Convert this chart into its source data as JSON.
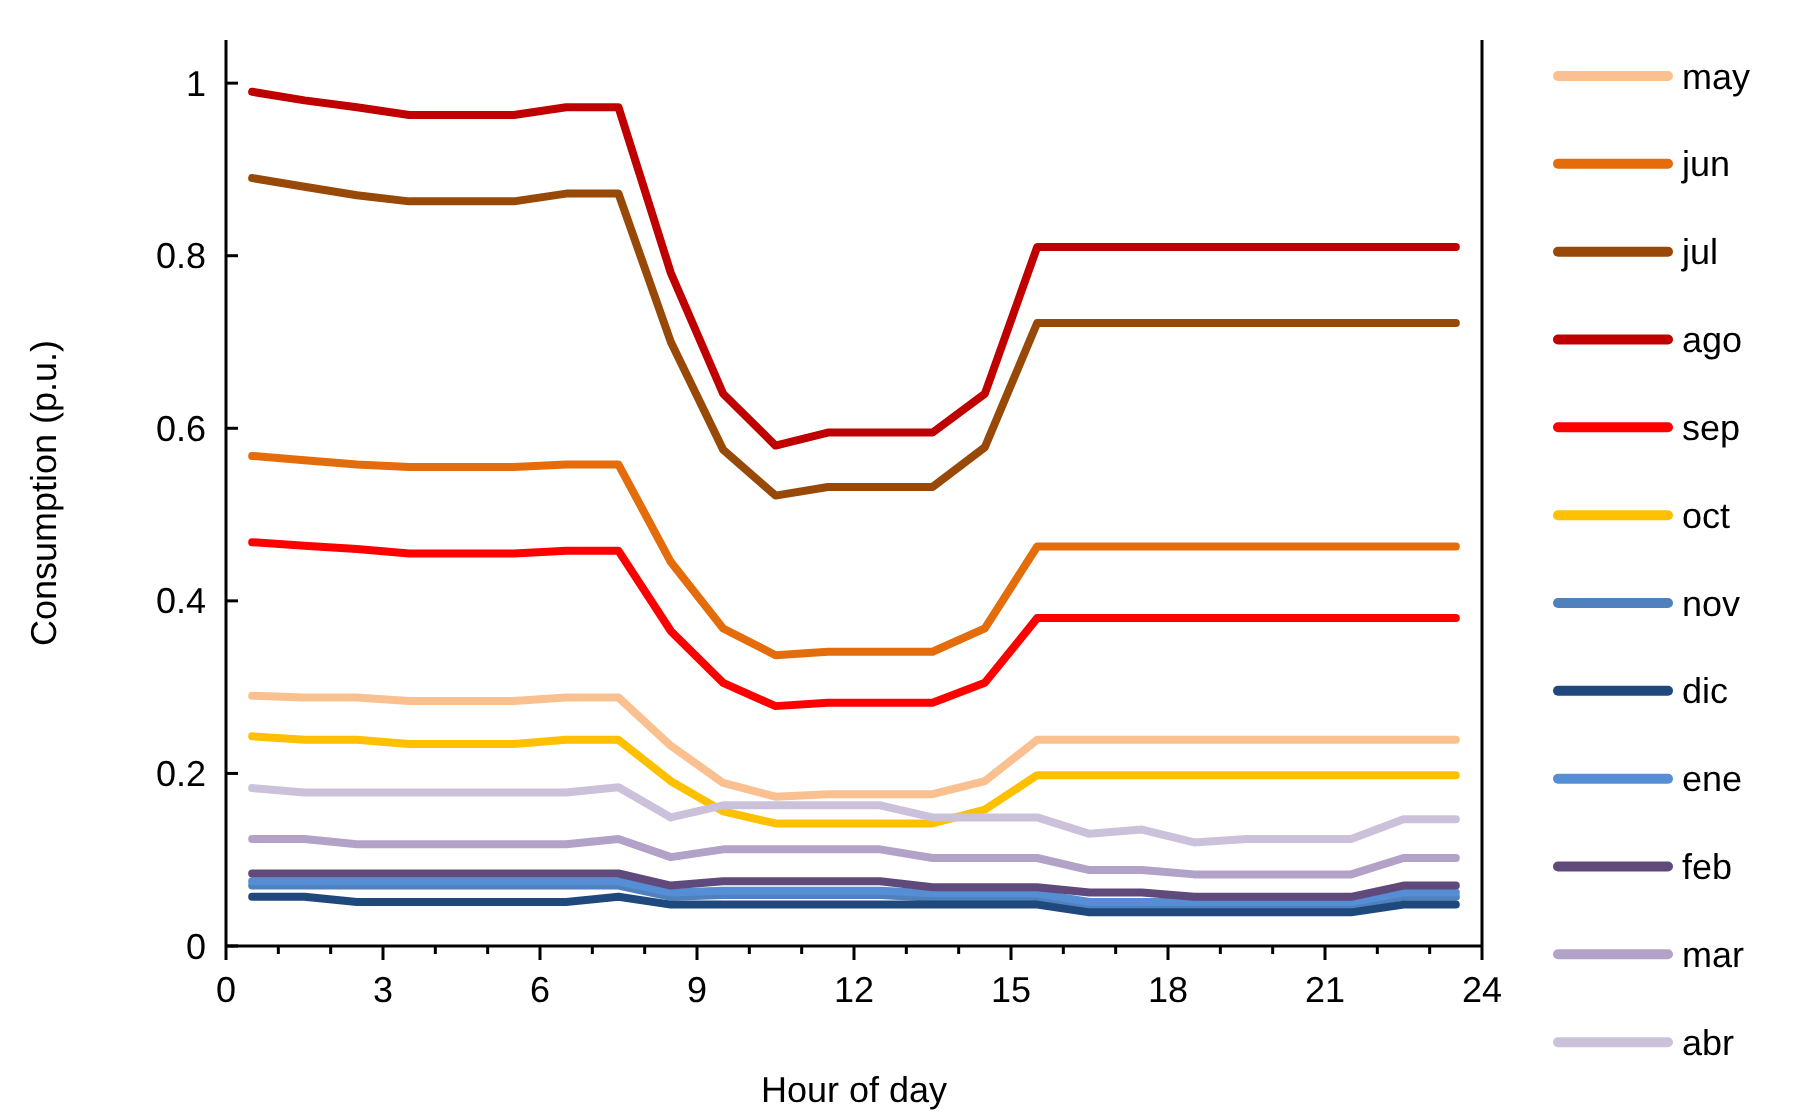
{
  "chart_data": {
    "type": "line",
    "xlabel": "Hour of day",
    "ylabel": "Consumption (p.u.)",
    "x": [
      0.5,
      1.5,
      2.5,
      3.5,
      4.5,
      5.5,
      6.5,
      7.5,
      8.5,
      9.5,
      10.5,
      11.5,
      12.5,
      13.5,
      14.5,
      15.5,
      16.5,
      17.5,
      18.5,
      19.5,
      20.5,
      21.5,
      22.5,
      23.5
    ],
    "xlim": [
      0,
      24
    ],
    "xticks": [
      0,
      {
        "value": 1,
        "label": null
      },
      {
        "value": 2,
        "label": null
      },
      3,
      {
        "value": 4,
        "label": null
      },
      {
        "value": 5,
        "label": null
      },
      6,
      {
        "value": 7,
        "label": null
      },
      {
        "value": 8,
        "label": null
      },
      9,
      {
        "value": 10,
        "label": null
      },
      {
        "value": 11,
        "label": null
      },
      12,
      {
        "value": 13,
        "label": null
      },
      {
        "value": 14,
        "label": null
      },
      15,
      {
        "value": 16,
        "label": null
      },
      {
        "value": 17,
        "label": null
      },
      18,
      {
        "value": 19,
        "label": null
      },
      {
        "value": 20,
        "label": null
      },
      21,
      {
        "value": 22,
        "label": null
      },
      {
        "value": 23,
        "label": null
      },
      24
    ],
    "ylim": [
      0,
      1.05
    ],
    "yticks": [
      0,
      0.2,
      0.4,
      0.6,
      0.8,
      1
    ],
    "grid": false,
    "legend": "right",
    "marker": "none",
    "line_style": "solid",
    "series": [
      {
        "name": "may",
        "color": "#fac090",
        "values": [
          0.29,
          0.288,
          0.288,
          0.284,
          0.284,
          0.284,
          0.288,
          0.288,
          0.232,
          0.189,
          0.173,
          0.176,
          0.176,
          0.176,
          0.191,
          0.239,
          0.239,
          0.239,
          0.239,
          0.239,
          0.239,
          0.239,
          0.239,
          0.239
        ]
      },
      {
        "name": "jun",
        "color": "#e46c0a",
        "values": [
          0.568,
          0.563,
          0.558,
          0.555,
          0.555,
          0.555,
          0.558,
          0.558,
          0.445,
          0.368,
          0.337,
          0.341,
          0.341,
          0.341,
          0.368,
          0.463,
          0.463,
          0.463,
          0.463,
          0.463,
          0.463,
          0.463,
          0.463,
          0.463
        ]
      },
      {
        "name": "jul",
        "color": "#984807",
        "values": [
          0.89,
          0.88,
          0.87,
          0.863,
          0.863,
          0.863,
          0.872,
          0.872,
          0.7,
          0.575,
          0.522,
          0.532,
          0.532,
          0.532,
          0.578,
          0.722,
          0.722,
          0.722,
          0.722,
          0.722,
          0.722,
          0.722,
          0.722,
          0.722
        ]
      },
      {
        "name": "ago",
        "color": "#c00000",
        "values": [
          0.99,
          0.98,
          0.972,
          0.963,
          0.963,
          0.963,
          0.972,
          0.972,
          0.78,
          0.64,
          0.58,
          0.595,
          0.595,
          0.595,
          0.64,
          0.81,
          0.81,
          0.81,
          0.81,
          0.81,
          0.81,
          0.81,
          0.81,
          0.81
        ]
      },
      {
        "name": "sep",
        "color": "#ff0000",
        "values": [
          0.468,
          0.464,
          0.46,
          0.455,
          0.455,
          0.455,
          0.458,
          0.458,
          0.365,
          0.305,
          0.278,
          0.282,
          0.282,
          0.282,
          0.305,
          0.38,
          0.38,
          0.38,
          0.38,
          0.38,
          0.38,
          0.38,
          0.38,
          0.38
        ]
      },
      {
        "name": "oct",
        "color": "#ffc000",
        "values": [
          0.243,
          0.239,
          0.239,
          0.234,
          0.234,
          0.234,
          0.239,
          0.239,
          0.191,
          0.156,
          0.142,
          0.142,
          0.142,
          0.142,
          0.158,
          0.198,
          0.198,
          0.198,
          0.198,
          0.198,
          0.198,
          0.198,
          0.198,
          0.198
        ]
      },
      {
        "name": "nov",
        "color": "#4f81bd",
        "values": [
          0.07,
          0.07,
          0.07,
          0.07,
          0.07,
          0.07,
          0.07,
          0.07,
          0.057,
          0.059,
          0.059,
          0.059,
          0.059,
          0.056,
          0.056,
          0.056,
          0.046,
          0.046,
          0.046,
          0.046,
          0.046,
          0.046,
          0.057,
          0.057
        ]
      },
      {
        "name": "dic",
        "color": "#1f497d",
        "values": [
          0.057,
          0.057,
          0.051,
          0.051,
          0.051,
          0.051,
          0.051,
          0.057,
          0.048,
          0.048,
          0.048,
          0.048,
          0.048,
          0.048,
          0.048,
          0.048,
          0.039,
          0.039,
          0.039,
          0.039,
          0.039,
          0.039,
          0.048,
          0.048
        ]
      },
      {
        "name": "ene",
        "color": "#558ed5",
        "values": [
          0.075,
          0.075,
          0.075,
          0.075,
          0.075,
          0.075,
          0.075,
          0.075,
          0.062,
          0.064,
          0.064,
          0.064,
          0.064,
          0.061,
          0.061,
          0.061,
          0.051,
          0.051,
          0.051,
          0.051,
          0.051,
          0.051,
          0.062,
          0.062
        ]
      },
      {
        "name": "feb",
        "color": "#604a7b",
        "values": [
          0.084,
          0.084,
          0.084,
          0.084,
          0.084,
          0.084,
          0.084,
          0.084,
          0.07,
          0.075,
          0.075,
          0.075,
          0.075,
          0.068,
          0.068,
          0.068,
          0.062,
          0.062,
          0.057,
          0.057,
          0.057,
          0.057,
          0.07,
          0.07
        ]
      },
      {
        "name": "mar",
        "color": "#b3a2c7",
        "values": [
          0.124,
          0.124,
          0.118,
          0.118,
          0.118,
          0.118,
          0.118,
          0.124,
          0.103,
          0.112,
          0.112,
          0.112,
          0.112,
          0.102,
          0.102,
          0.102,
          0.088,
          0.088,
          0.083,
          0.083,
          0.083,
          0.083,
          0.102,
          0.102
        ]
      },
      {
        "name": "abr",
        "color": "#ccc1da",
        "values": [
          0.183,
          0.178,
          0.178,
          0.178,
          0.178,
          0.178,
          0.178,
          0.184,
          0.149,
          0.163,
          0.163,
          0.163,
          0.163,
          0.149,
          0.149,
          0.149,
          0.13,
          0.135,
          0.12,
          0.124,
          0.124,
          0.124,
          0.147,
          0.147
        ]
      }
    ]
  }
}
